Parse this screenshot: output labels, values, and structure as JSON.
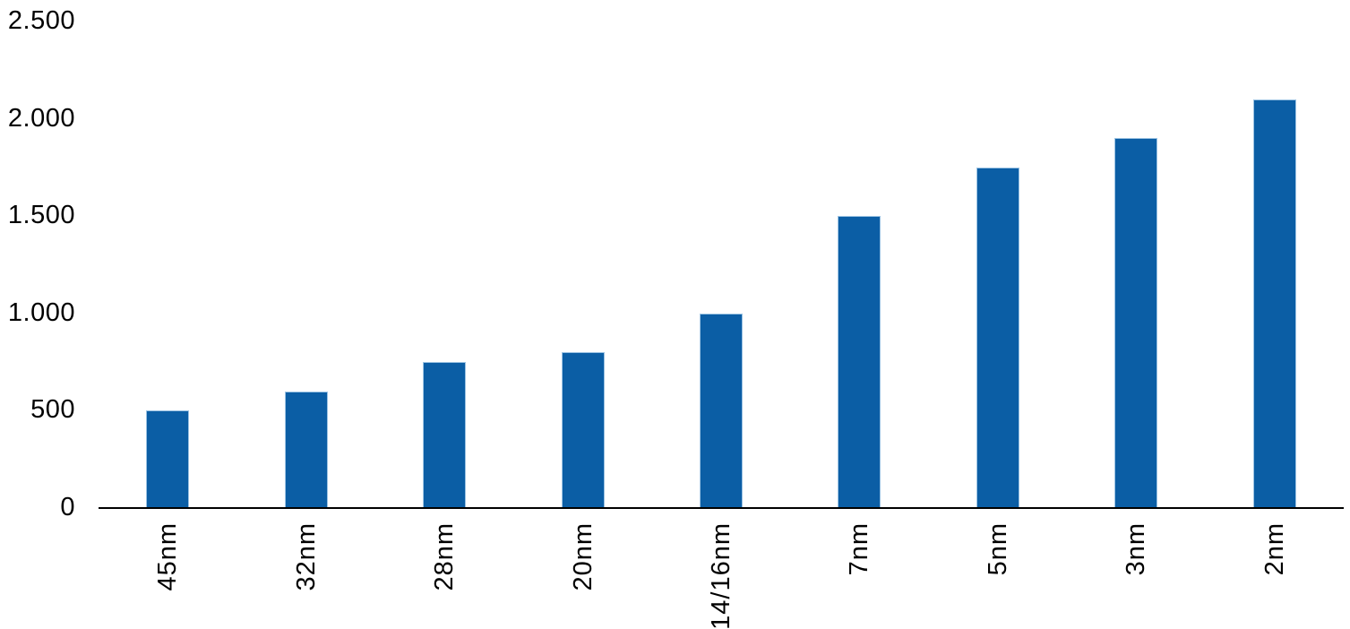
{
  "chart_data": {
    "type": "bar",
    "title": "",
    "xlabel": "",
    "ylabel": "",
    "categories": [
      "45nm",
      "32nm",
      "28nm",
      "20nm",
      "14/16nm",
      "7nm",
      "5nm",
      "3nm",
      "2nm"
    ],
    "values": [
      500,
      600,
      750,
      800,
      1000,
      1500,
      1750,
      1900,
      2100
    ],
    "ylim": [
      0,
      2500
    ],
    "ytick_step": 500,
    "ytick_labels": [
      "0",
      "500",
      "1.000",
      "1.500",
      "2.000",
      "2.500"
    ],
    "number_format": "thousands-dot",
    "grid": false,
    "legend": false,
    "bar_color": "#0B5EA5",
    "bar_border_color": "#9CC3E3",
    "axis_line_color": "#000000",
    "label_color": "#000000",
    "background": "#FFFFFF"
  }
}
